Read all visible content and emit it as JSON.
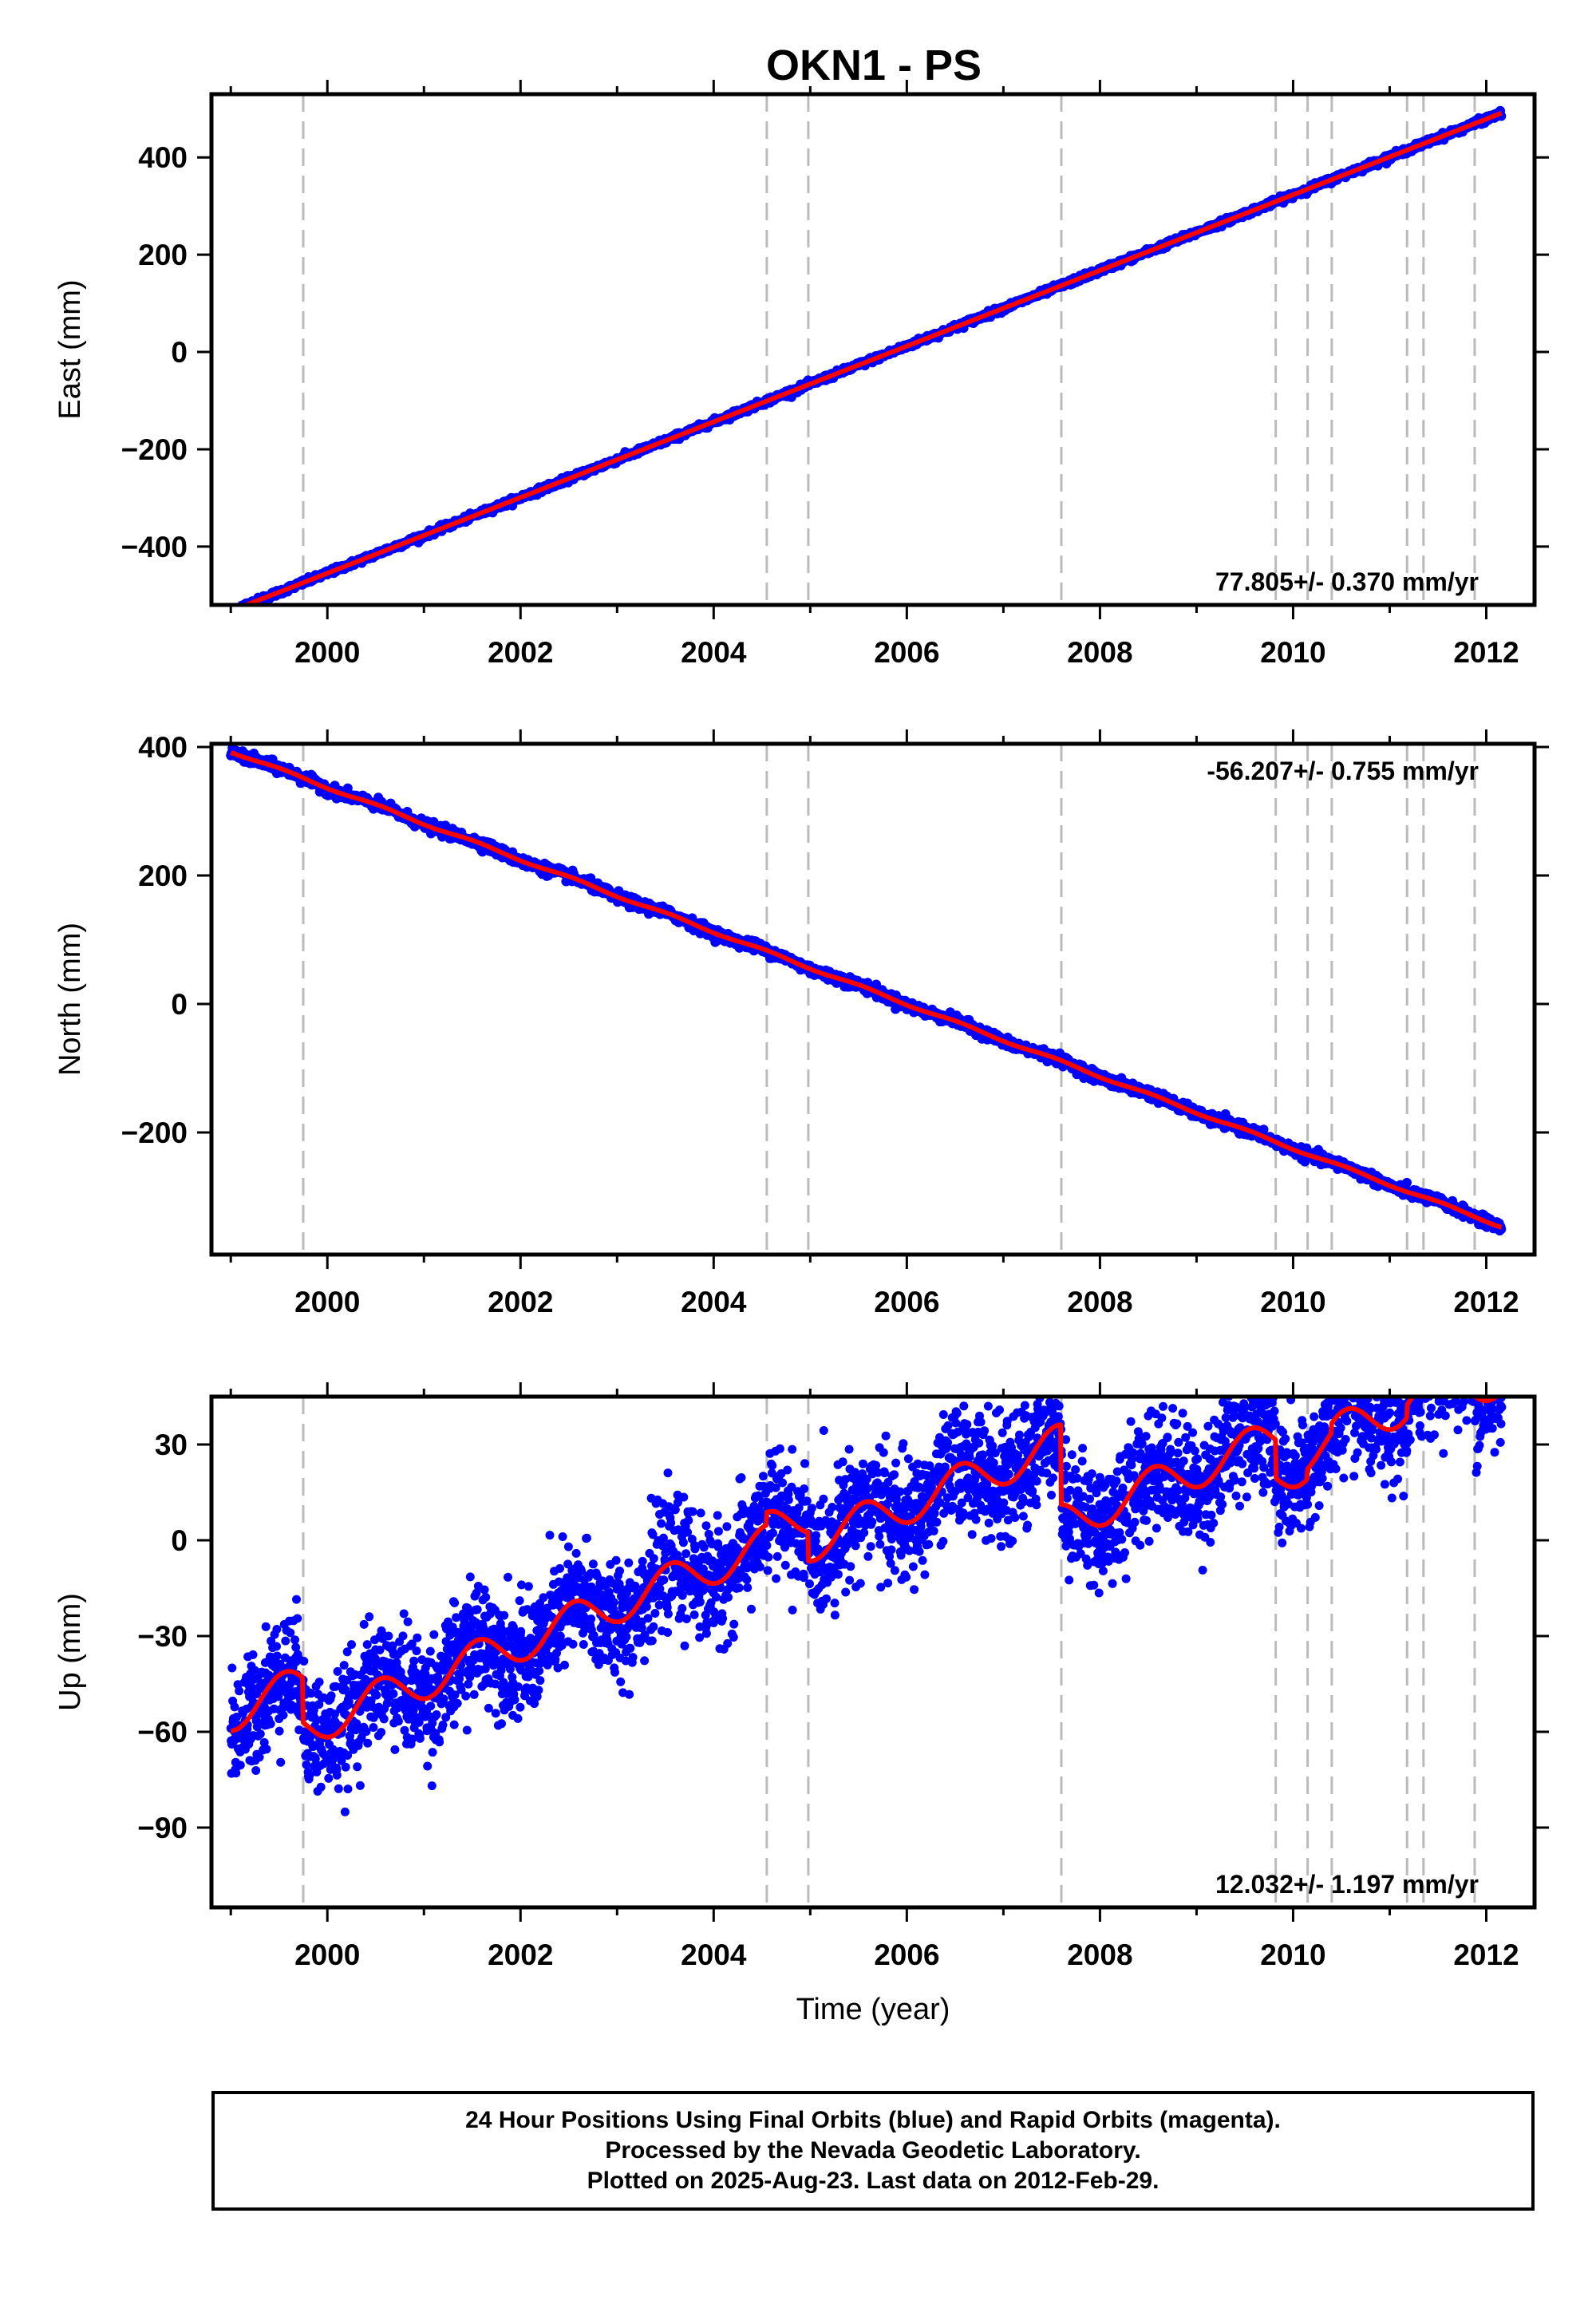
{
  "figure_title": "OKN1 - PS",
  "chart_data": [
    {
      "type": "scatter",
      "name": "east",
      "ylabel": "East (mm)",
      "xlabel": "",
      "xlim": [
        1998.8,
        2012.5
      ],
      "ylim": [
        -520,
        530
      ],
      "xticks": [
        2000,
        2002,
        2004,
        2006,
        2008,
        2010,
        2012
      ],
      "yticks": [
        -400,
        -200,
        0,
        200,
        400
      ],
      "ytick_labels": [
        "−400",
        "−200",
        "0",
        "200",
        "400"
      ],
      "rate_text": "77.805+/- 0.370 mm/yr",
      "rate_position": "bottom-right",
      "data_range": [
        1999.0,
        2012.16
      ],
      "model": {
        "slope": 77.805,
        "ref_year": 2006.0,
        "offset": 12,
        "seasonal_amp": 0,
        "jumps": []
      },
      "noise": 3,
      "breaks": [
        1999.75,
        2004.55,
        2004.98,
        2007.6,
        2009.82,
        2010.15,
        2010.4,
        2011.18,
        2011.35,
        2011.88
      ]
    },
    {
      "type": "scatter",
      "name": "north",
      "ylabel": "North (mm)",
      "xlabel": "",
      "xlim": [
        1998.8,
        2012.5
      ],
      "ylim": [
        -390,
        405
      ],
      "xticks": [
        2000,
        2002,
        2004,
        2006,
        2008,
        2010,
        2012
      ],
      "yticks": [
        -200,
        0,
        200,
        400
      ],
      "ytick_labels": [
        "−200",
        "0",
        "200",
        "400"
      ],
      "rate_text": "-56.207+/- 0.755 mm/yr",
      "rate_position": "top-right",
      "data_range": [
        1999.0,
        2012.16
      ],
      "model": {
        "slope": -56.207,
        "ref_year": 2006.0,
        "offset": 0,
        "seasonal_amp": 2,
        "jumps": []
      },
      "noise": 4,
      "breaks": [
        1999.75,
        2004.55,
        2004.98,
        2007.6,
        2009.82,
        2010.15,
        2010.4,
        2011.18,
        2011.35,
        2011.88
      ]
    },
    {
      "type": "scatter",
      "name": "up",
      "ylabel": "Up (mm)",
      "xlabel": "Time (year)",
      "xlim": [
        1998.8,
        2012.5
      ],
      "ylim": [
        -115,
        45
      ],
      "xticks": [
        2000,
        2002,
        2004,
        2006,
        2008,
        2010,
        2012
      ],
      "yticks": [
        -90,
        -60,
        -30,
        0,
        30
      ],
      "ytick_labels": [
        "−90",
        "−60",
        "−30",
        "0",
        "30"
      ],
      "rate_text": "12.032+/- 1.197 mm/yr",
      "rate_position": "bottom-right",
      "data_range": [
        1999.0,
        2012.16
      ],
      "model": {
        "slope": 12.032,
        "ref_year": 1999.0,
        "offset": -54,
        "seasonal_amp": 6,
        "jumps": [
          [
            1999.75,
            -14
          ],
          [
            2004.55,
            4
          ],
          [
            2004.98,
            -9
          ],
          [
            2007.6,
            -25
          ],
          [
            2009.82,
            -12
          ],
          [
            2010.15,
            3
          ],
          [
            2010.4,
            3
          ],
          [
            2011.18,
            4
          ],
          [
            2011.88,
            -7
          ]
        ]
      },
      "data_shift": [
        [
          2003.05,
          25
        ]
      ],
      "noise": 9,
      "data_gaps": [],
      "breaks": [
        1999.75,
        2004.55,
        2004.98,
        2007.6,
        2009.82,
        2010.15,
        2010.4,
        2011.18,
        2011.35,
        2011.88
      ]
    }
  ],
  "colors": {
    "data": "#0000ff",
    "model": "#ff0000",
    "break_line": "#bbbbbb",
    "axis": "#000000"
  },
  "footer": {
    "line1": "24 Hour Positions Using Final Orbits (blue) and Rapid Orbits (magenta).",
    "line2": "Processed by the Nevada Geodetic Laboratory.",
    "line3": "Plotted on 2025-Aug-23. Last data on 2012-Feb-29."
  }
}
